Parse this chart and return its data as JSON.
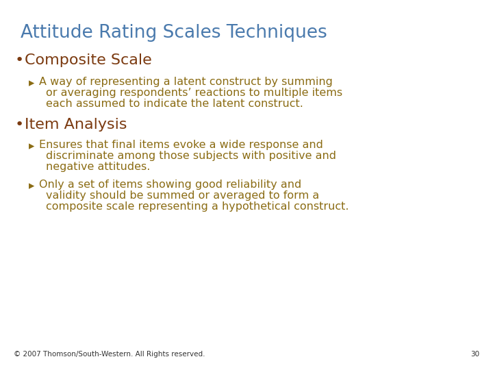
{
  "title": "Attitude Rating Scales Techniques",
  "title_color": "#4a7aad",
  "bullet_color": "#7b3a10",
  "sub_color": "#8b6c14",
  "background_color": "#ffffff",
  "footer_text": "© 2007 Thomson/South-Western. All Rights reserved.",
  "footer_page": "30",
  "bullet1": "Composite Scale",
  "bullet1_sub1": "A way of representing a latent construct by summing\n    or averaging respondents’ reactions to multiple items\n    each assumed to indicate the latent construct.",
  "bullet2": "Item Analysis",
  "bullet2_sub1": "Ensures that final items evoke a wide response and\n    discriminate among those subjects with positive and\n    negative attitudes.",
  "bullet2_sub2": "Only a set of items showing good reliability and\n    validity should be summed or averaged to form a\n    composite scale representing a hypothetical construct."
}
